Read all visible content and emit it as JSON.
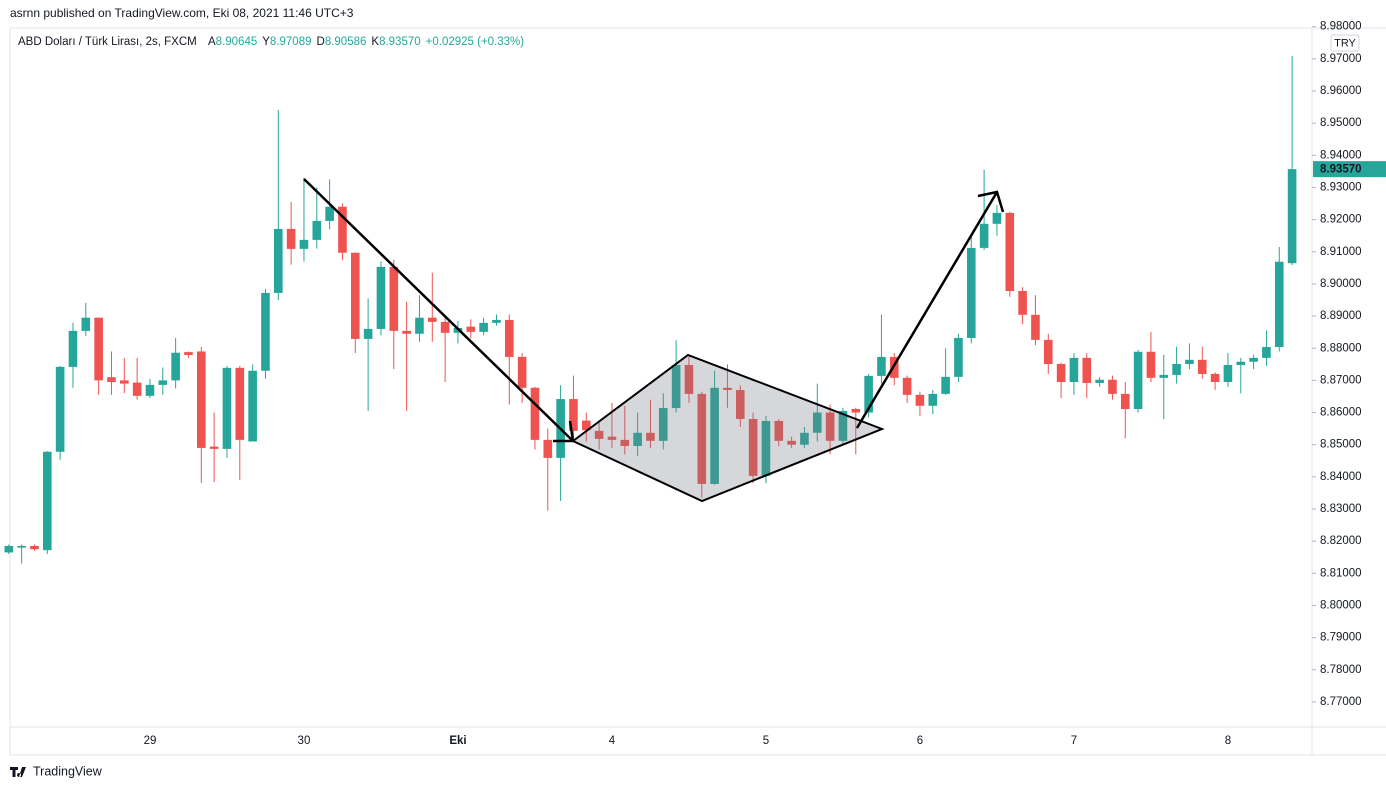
{
  "header": {
    "published": "asrnn published on TradingView.com, Eki 08, 2021 11:46 UTC+3",
    "brand": "TradingView"
  },
  "chart_data": {
    "type": "candlestick",
    "title": "ABD Doları / Türk Lirası, 2s, FXCM",
    "ohlc_legend": [
      {
        "key": "A",
        "value": "8.90645"
      },
      {
        "key": "Y",
        "value": "8.97089"
      },
      {
        "key": "D",
        "value": "8.90586"
      },
      {
        "key": "K",
        "value": "8.93570"
      }
    ],
    "change": "+0.02925 (+0.33%)",
    "currency": "TRY",
    "up_color": "#26a69a",
    "down_color": "#ef5350",
    "categories": [
      null,
      null,
      null,
      null,
      null,
      null,
      null,
      null,
      null,
      null,
      null,
      "29",
      null,
      null,
      null,
      null,
      null,
      null,
      null,
      null,
      null,
      null,
      null,
      "30",
      null,
      null,
      null,
      null,
      null,
      null,
      null,
      null,
      null,
      null,
      null,
      "Eki",
      null,
      null,
      null,
      null,
      null,
      null,
      null,
      null,
      null,
      null,
      null,
      "4",
      null,
      null,
      null,
      null,
      null,
      null,
      null,
      null,
      null,
      null,
      null,
      "5",
      null,
      null,
      null,
      null,
      null,
      null,
      null,
      null,
      null,
      null,
      null,
      "6",
      null,
      null,
      null,
      null,
      null,
      null,
      null,
      null,
      null,
      null,
      null,
      "7",
      null,
      null,
      null,
      null,
      null,
      null,
      null,
      null,
      null,
      null,
      null,
      "8",
      null,
      null,
      null,
      null,
      null
    ],
    "open": [
      8.8165,
      8.818,
      8.8185,
      8.8172,
      8.8478,
      8.8742,
      8.8854,
      8.8895,
      8.871,
      8.87,
      8.8693,
      8.8652,
      8.8686,
      8.87,
      8.8788,
      8.879,
      8.8494,
      8.8487,
      8.8739,
      8.851,
      8.873,
      8.8972,
      8.9171,
      8.9109,
      8.9137,
      8.9196,
      8.924,
      8.9097,
      8.8829,
      8.886,
      8.9053,
      8.8854,
      8.8845,
      8.8895,
      8.8882,
      8.8848,
      8.8867,
      8.8851,
      8.8879,
      8.8888,
      8.8773,
      8.8677,
      8.8515,
      8.8459,
      8.8642,
      8.8575,
      8.8543,
      8.8525,
      8.8515,
      8.8496,
      8.8537,
      8.8512,
      8.8614,
      8.8748,
      8.8658,
      8.8378,
      8.8677,
      8.867,
      8.858,
      8.8403,
      8.8574,
      8.8512,
      8.85,
      8.8537,
      8.86,
      8.8512,
      8.8611,
      8.86,
      8.8714,
      8.8773,
      8.8708,
      8.8655,
      8.8621,
      8.8658,
      8.8711,
      8.8832,
      8.9112,
      8.9187,
      8.9221,
      8.8978,
      8.8904,
      8.8826,
      8.8751,
      8.8695,
      8.877,
      8.8692,
      8.8702,
      8.8658,
      8.8611,
      8.8789,
      8.8708,
      8.8717,
      8.8751,
      8.8764,
      8.872,
      8.8695,
      8.8748,
      8.8758,
      8.877,
      8.8804,
      8.90645
    ],
    "high": [
      8.819,
      8.819,
      8.819,
      8.848,
      8.8745,
      8.8879,
      8.8941,
      8.8895,
      8.879,
      8.877,
      8.877,
      8.8705,
      8.874,
      8.8832,
      8.879,
      8.8804,
      8.86,
      8.8745,
      8.8745,
      8.875,
      8.8985,
      8.9541,
      8.9255,
      8.933,
      8.93,
      8.9325,
      8.925,
      8.9097,
      8.8955,
      8.907,
      8.9075,
      8.8945,
      8.8965,
      8.9035,
      8.8895,
      8.8885,
      8.889,
      8.8895,
      8.8905,
      8.8905,
      8.8785,
      8.868,
      8.855,
      8.8685,
      8.8715,
      8.86,
      8.857,
      8.863,
      8.862,
      8.86,
      8.864,
      8.866,
      8.8825,
      8.8775,
      8.8665,
      8.873,
      8.875,
      8.8685,
      8.86,
      8.859,
      8.858,
      8.8525,
      8.8555,
      8.869,
      8.8625,
      8.8615,
      8.8615,
      8.872,
      8.8905,
      8.8785,
      8.8715,
      8.8665,
      8.867,
      8.88,
      8.8845,
      8.9155,
      8.9355,
      8.9245,
      8.9225,
      8.899,
      8.8965,
      8.8845,
      8.8755,
      8.8785,
      8.8785,
      8.871,
      8.8715,
      8.8695,
      8.8795,
      8.885,
      8.878,
      8.8805,
      8.8815,
      8.8805,
      8.8725,
      8.8785,
      8.877,
      8.878,
      8.8855,
      8.9115,
      8.97089
    ],
    "low": [
      8.816,
      8.813,
      8.817,
      8.816,
      8.8453,
      8.8677,
      8.8838,
      8.8655,
      8.8655,
      8.866,
      8.864,
      8.8645,
      8.8655,
      8.8675,
      8.877,
      8.8381,
      8.8384,
      8.8459,
      8.839,
      8.851,
      8.8705,
      8.895,
      8.906,
      8.907,
      8.911,
      8.917,
      8.9075,
      8.8785,
      8.8605,
      8.884,
      8.8735,
      8.8605,
      8.882,
      8.882,
      8.8695,
      8.8815,
      8.883,
      8.884,
      8.887,
      8.8625,
      8.863,
      8.8485,
      8.8295,
      8.8325,
      8.851,
      8.851,
      8.8485,
      8.849,
      8.847,
      8.8465,
      8.849,
      8.8485,
      8.86,
      8.863,
      8.8335,
      8.8375,
      8.8615,
      8.8555,
      8.838,
      8.838,
      8.8495,
      8.849,
      8.849,
      8.851,
      8.847,
      8.85,
      8.847,
      8.8585,
      8.869,
      8.8685,
      8.863,
      8.859,
      8.8595,
      8.8655,
      8.8695,
      8.8815,
      8.9105,
      8.915,
      8.896,
      8.8875,
      8.881,
      8.872,
      8.8645,
      8.8655,
      8.8645,
      8.868,
      8.864,
      8.852,
      8.86,
      8.8695,
      8.858,
      8.869,
      8.8735,
      8.8705,
      8.867,
      8.868,
      8.866,
      8.8735,
      8.8745,
      8.879,
      8.90586
    ],
    "close": [
      8.8185,
      8.8185,
      8.8175,
      8.8478,
      8.8742,
      8.8854,
      8.8895,
      8.87,
      8.8695,
      8.869,
      8.8652,
      8.8686,
      8.87,
      8.8786,
      8.8779,
      8.849,
      8.8487,
      8.8739,
      8.8515,
      8.873,
      8.8972,
      8.9171,
      8.9109,
      8.9137,
      8.9196,
      8.924,
      8.9097,
      8.8829,
      8.886,
      8.9053,
      8.8854,
      8.8845,
      8.8895,
      8.8882,
      8.8848,
      8.8863,
      8.8851,
      8.8879,
      8.8888,
      8.8773,
      8.8677,
      8.8515,
      8.8459,
      8.8642,
      8.8543,
      8.8545,
      8.8518,
      8.8515,
      8.8496,
      8.8537,
      8.8512,
      8.8614,
      8.8748,
      8.8658,
      8.8378,
      8.8677,
      8.867,
      8.858,
      8.8403,
      8.8574,
      8.8512,
      8.85,
      8.8537,
      8.86,
      8.8512,
      8.8605,
      8.86,
      8.8714,
      8.8773,
      8.8708,
      8.8655,
      8.8621,
      8.8658,
      8.8711,
      8.8832,
      8.9112,
      8.9187,
      8.9221,
      8.8978,
      8.8904,
      8.8826,
      8.8751,
      8.8695,
      8.877,
      8.8692,
      8.8702,
      8.8658,
      8.8611,
      8.8789,
      8.8708,
      8.8717,
      8.8751,
      8.8764,
      8.872,
      8.8695,
      8.8748,
      8.8758,
      8.877,
      8.8804,
      8.9069,
      8.9357
    ],
    "last_price": {
      "value": 8.9357,
      "label": "8.93570"
    },
    "ylim": [
      8.7622,
      8.9796
    ],
    "yticks": [
      {
        "value": 8.77,
        "label": "8.77000"
      },
      {
        "value": 8.78,
        "label": "8.78000"
      },
      {
        "value": 8.79,
        "label": "8.79000"
      },
      {
        "value": 8.8,
        "label": "8.80000"
      },
      {
        "value": 8.81,
        "label": "8.81000"
      },
      {
        "value": 8.82,
        "label": "8.82000"
      },
      {
        "value": 8.83,
        "label": "8.83000"
      },
      {
        "value": 8.84,
        "label": "8.84000"
      },
      {
        "value": 8.85,
        "label": "8.85000"
      },
      {
        "value": 8.86,
        "label": "8.86000"
      },
      {
        "value": 8.87,
        "label": "8.87000"
      },
      {
        "value": 8.88,
        "label": "8.88000"
      },
      {
        "value": 8.89,
        "label": "8.89000"
      },
      {
        "value": 8.9,
        "label": "8.90000"
      },
      {
        "value": 8.91,
        "label": "8.91000"
      },
      {
        "value": 8.92,
        "label": "8.92000"
      },
      {
        "value": 8.93,
        "label": "8.93000"
      },
      {
        "value": 8.94,
        "label": "8.94000"
      },
      {
        "value": 8.95,
        "label": "8.95000"
      },
      {
        "value": 8.96,
        "label": "8.96000"
      },
      {
        "value": 8.97,
        "label": "8.97000"
      },
      {
        "value": 8.98,
        "label": "8.98000"
      }
    ],
    "grid": false
  }
}
